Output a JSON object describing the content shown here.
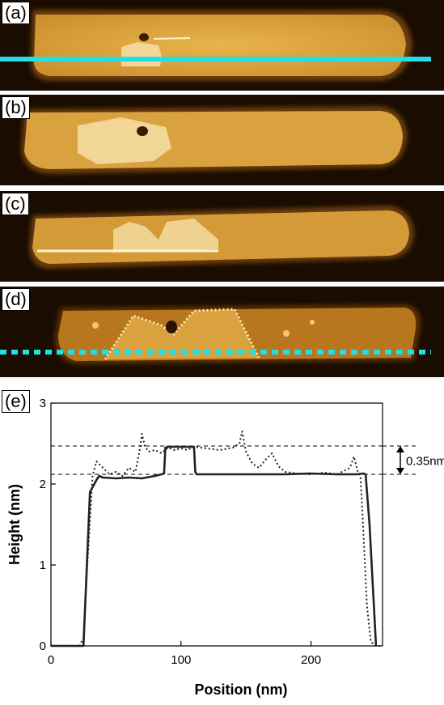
{
  "panels": [
    {
      "label": "(a)"
    },
    {
      "label": "(b)"
    },
    {
      "label": "(c)"
    },
    {
      "label": "(d)"
    }
  ],
  "colors": {
    "cut_line": "#1fe0e6",
    "afm_bright": "#e9b44c",
    "afm_dark": "#2a1400"
  },
  "chart_data": {
    "type": "line",
    "panel_label": "(e)",
    "xlabel": "Position (nm)",
    "ylabel": "Height (nm)",
    "xlim": [
      0,
      255
    ],
    "ylim": [
      0,
      3
    ],
    "xticks": [
      0,
      100,
      200
    ],
    "yticks": [
      0,
      1,
      2,
      3
    ],
    "annotation": "0.35nm",
    "reference_lines": [
      2.12,
      2.47
    ],
    "series": [
      {
        "style": "solid",
        "x": [
          0,
          25,
          30,
          35,
          37,
          40,
          50,
          60,
          70,
          80,
          85,
          87,
          88,
          90,
          100,
          110,
          111,
          112,
          120,
          150,
          180,
          200,
          220,
          235,
          240,
          242,
          245,
          248,
          250
        ],
        "y": [
          0,
          0,
          1.9,
          2.05,
          2.1,
          2.08,
          2.07,
          2.08,
          2.07,
          2.1,
          2.12,
          2.13,
          2.45,
          2.46,
          2.46,
          2.46,
          2.15,
          2.12,
          2.12,
          2.12,
          2.12,
          2.13,
          2.12,
          2.12,
          2.13,
          2.12,
          1.5,
          0.6,
          0
        ]
      },
      {
        "style": "dotted",
        "x": [
          0,
          22,
          25,
          28,
          32,
          35,
          40,
          45,
          50,
          55,
          60,
          65,
          68,
          70,
          72,
          75,
          80,
          85,
          90,
          95,
          100,
          105,
          110,
          120,
          130,
          140,
          145,
          147,
          150,
          155,
          160,
          165,
          170,
          175,
          180,
          190,
          200,
          210,
          220,
          230,
          233,
          236,
          238,
          240,
          243,
          246,
          250,
          253
        ],
        "y": [
          0,
          0,
          0.1,
          1.0,
          2.1,
          2.28,
          2.2,
          2.12,
          2.15,
          2.1,
          2.2,
          2.15,
          2.4,
          2.62,
          2.48,
          2.4,
          2.42,
          2.38,
          2.45,
          2.42,
          2.44,
          2.42,
          2.46,
          2.44,
          2.42,
          2.45,
          2.5,
          2.65,
          2.4,
          2.25,
          2.2,
          2.3,
          2.38,
          2.22,
          2.15,
          2.13,
          2.12,
          2.14,
          2.12,
          2.2,
          2.34,
          2.15,
          2.1,
          1.5,
          0.5,
          0.05,
          0,
          0
        ]
      }
    ]
  }
}
